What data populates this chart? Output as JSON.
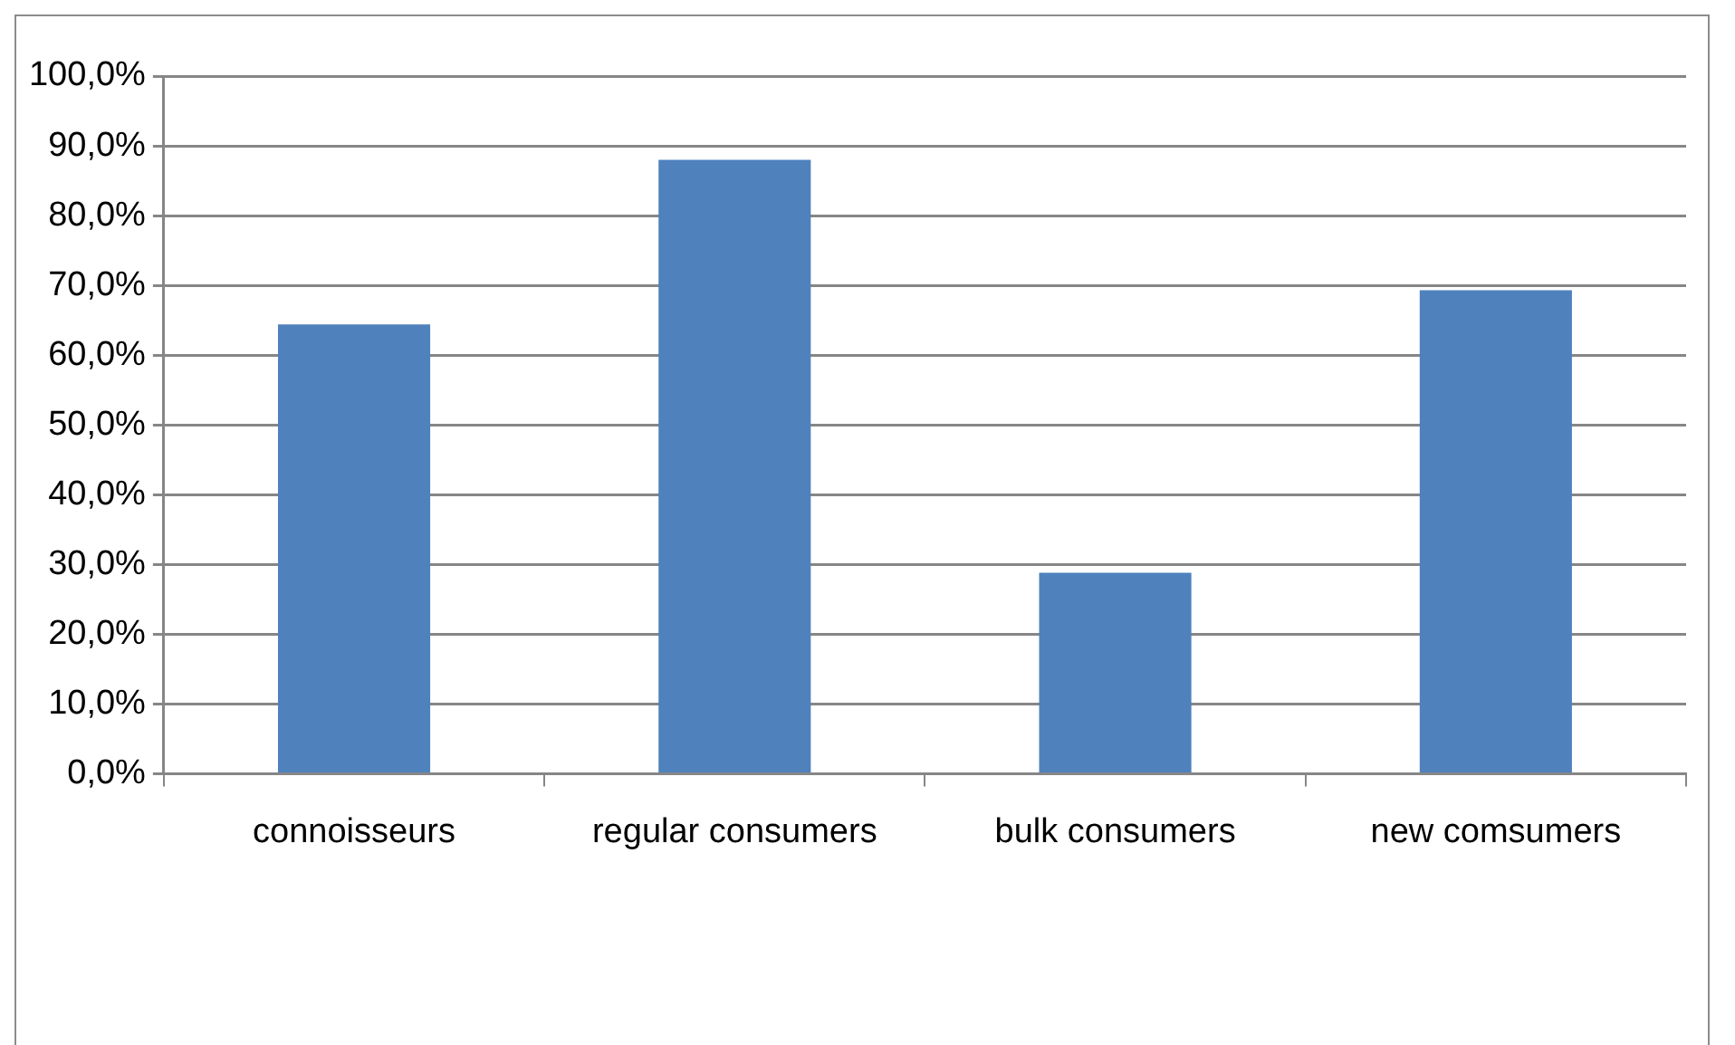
{
  "chart_data": {
    "type": "bar",
    "categories": [
      "connoisseurs",
      "regular consumers",
      "bulk consumers",
      "new comsumers"
    ],
    "values": [
      64.4,
      88.0,
      28.8,
      69.3
    ],
    "color": "#4f81bd",
    "ylim": [
      0,
      100
    ],
    "yticks": [
      {
        "value": 0,
        "label": "0,0%"
      },
      {
        "value": 10,
        "label": "10,0%"
      },
      {
        "value": 20,
        "label": "20,0%"
      },
      {
        "value": 30,
        "label": "30,0%"
      },
      {
        "value": 40,
        "label": "40,0%"
      },
      {
        "value": 50,
        "label": "50,0%"
      },
      {
        "value": 60,
        "label": "60,0%"
      },
      {
        "value": 70,
        "label": "70,0%"
      },
      {
        "value": 80,
        "label": "80,0%"
      },
      {
        "value": 90,
        "label": "90,0%"
      },
      {
        "value": 100,
        "label": "100,0%"
      }
    ],
    "grid": "y",
    "legend": false
  }
}
